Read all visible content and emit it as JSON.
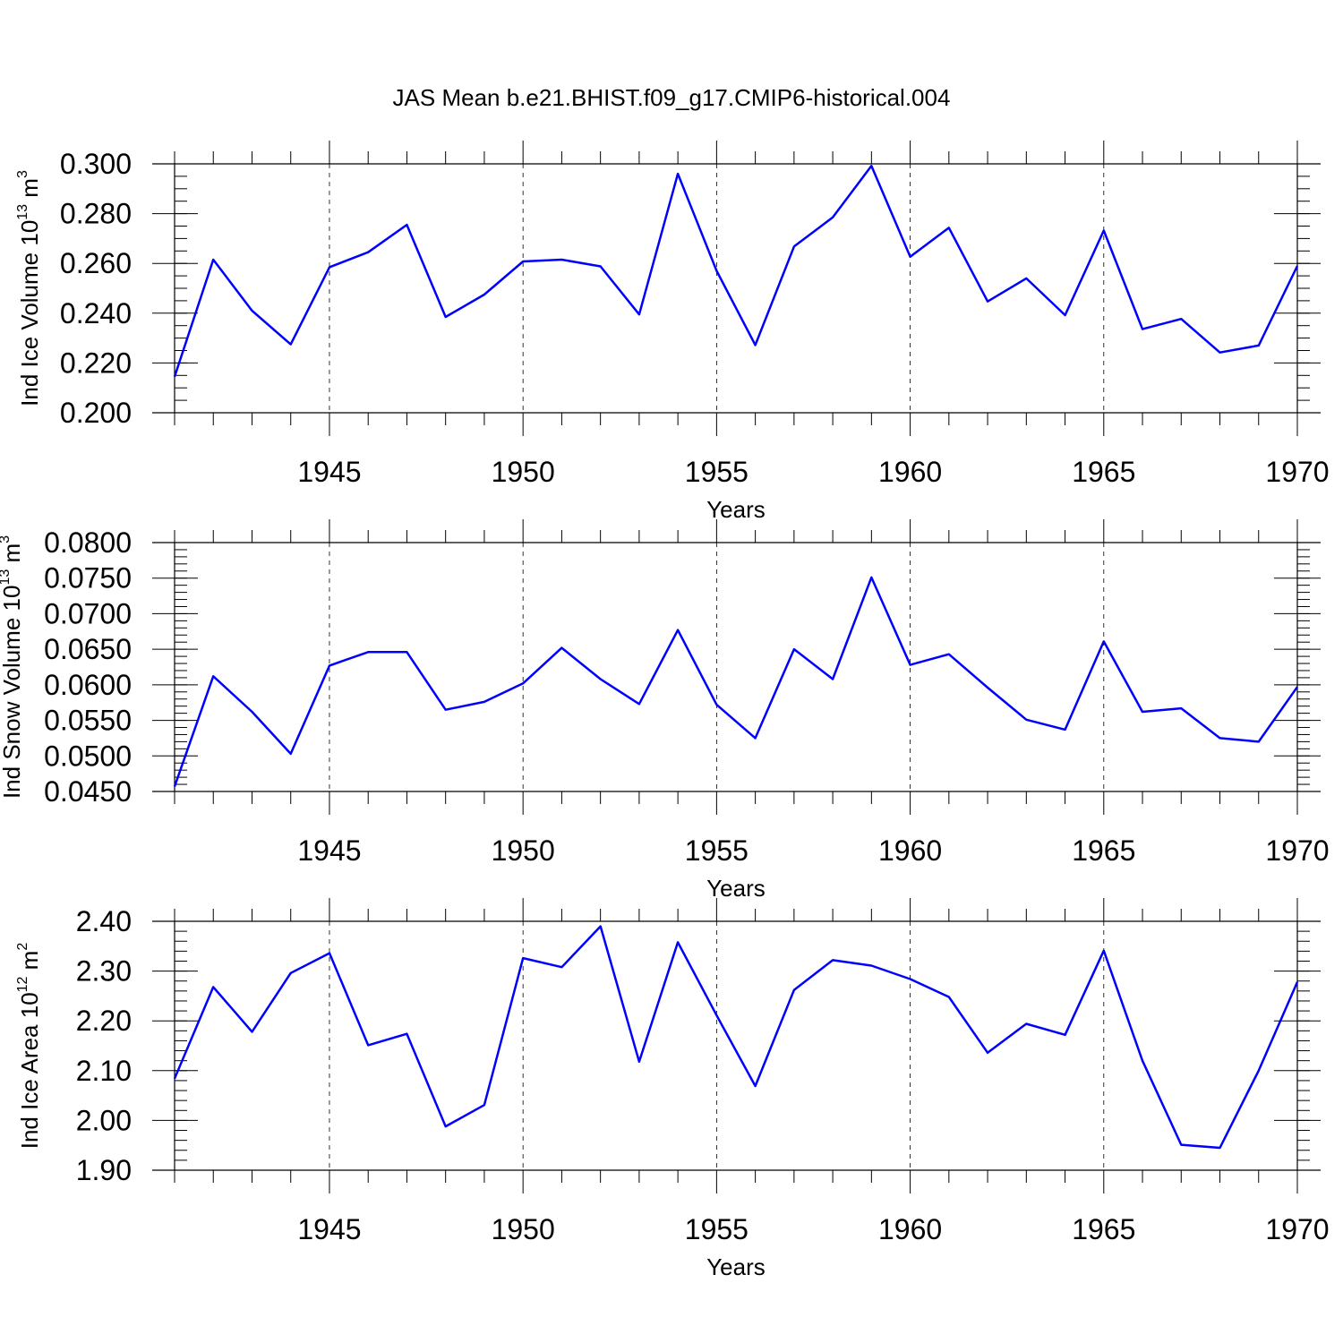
{
  "title": "JAS Mean b.e21.BHIST.f09_g17.CMIP6-historical.004",
  "colors": {
    "line": "#0000ff",
    "axis": "#000000"
  },
  "chart_data": [
    {
      "type": "line",
      "ylabel": {
        "base": "Ind Ice Volume 10",
        "exp": "13",
        "unit": " m",
        "unit_exp": "3"
      },
      "xlabel": "Years",
      "xlim": [
        1941,
        1970
      ],
      "ylim": [
        0.2,
        0.3
      ],
      "x_ticks": [
        1945,
        1950,
        1955,
        1960,
        1965,
        1970
      ],
      "x_tick_labels": [
        "1945",
        "1950",
        "1955",
        "1960",
        "1965",
        "1970"
      ],
      "y_ticks": [
        0.2,
        0.22,
        0.24,
        0.26,
        0.28,
        0.3
      ],
      "y_tick_labels": [
        "0.200",
        "0.220",
        "0.240",
        "0.260",
        "0.280",
        "0.300"
      ],
      "y_minor_step": 0.005,
      "grid": "dashed vertical at major x ticks",
      "series": [
        {
          "name": "Ind Ice Volume",
          "x": [
            1941,
            1942,
            1943,
            1944,
            1945,
            1946,
            1947,
            1948,
            1949,
            1950,
            1951,
            1952,
            1953,
            1954,
            1955,
            1956,
            1957,
            1958,
            1959,
            1960,
            1961,
            1962,
            1963,
            1964,
            1965,
            1966,
            1967,
            1968,
            1969,
            1970
          ],
          "values": [
            0.2145,
            0.2615,
            0.241,
            0.2275,
            0.2585,
            0.2645,
            0.2755,
            0.2385,
            0.2475,
            0.2608,
            0.2615,
            0.2588,
            0.2395,
            0.296,
            0.257,
            0.2272,
            0.2668,
            0.2785,
            0.2992,
            0.2627,
            0.2743,
            0.2447,
            0.254,
            0.2392,
            0.2732,
            0.2336,
            0.2377,
            0.2242,
            0.227,
            0.259
          ]
        }
      ]
    },
    {
      "type": "line",
      "ylabel": {
        "base": "Ind Snow Volume 10",
        "exp": "13",
        "unit": " m",
        "unit_exp": "3"
      },
      "xlabel": "Years",
      "xlim": [
        1941,
        1970
      ],
      "ylim": [
        0.045,
        0.08
      ],
      "x_ticks": [
        1945,
        1950,
        1955,
        1960,
        1965,
        1970
      ],
      "x_tick_labels": [
        "1945",
        "1950",
        "1955",
        "1960",
        "1965",
        "1970"
      ],
      "y_ticks": [
        0.045,
        0.05,
        0.055,
        0.06,
        0.065,
        0.07,
        0.075,
        0.08
      ],
      "y_tick_labels": [
        "0.0450",
        "0.0500",
        "0.0550",
        "0.0600",
        "0.0650",
        "0.0700",
        "0.0750",
        "0.0800"
      ],
      "y_minor_step": 0.001,
      "grid": "dashed vertical at major x ticks",
      "series": [
        {
          "name": "Ind Snow Volume",
          "x": [
            1941,
            1942,
            1943,
            1944,
            1945,
            1946,
            1947,
            1948,
            1949,
            1950,
            1951,
            1952,
            1953,
            1954,
            1955,
            1956,
            1957,
            1958,
            1959,
            1960,
            1961,
            1962,
            1963,
            1964,
            1965,
            1966,
            1967,
            1968,
            1969,
            1970
          ],
          "values": [
            0.0457,
            0.0612,
            0.0562,
            0.0503,
            0.0627,
            0.0646,
            0.0646,
            0.0565,
            0.0576,
            0.0602,
            0.0652,
            0.0608,
            0.0573,
            0.0677,
            0.0572,
            0.0525,
            0.065,
            0.0608,
            0.0751,
            0.0628,
            0.0643,
            0.0596,
            0.0551,
            0.0537,
            0.0661,
            0.0562,
            0.0567,
            0.0525,
            0.052,
            0.0597
          ]
        }
      ]
    },
    {
      "type": "line",
      "ylabel": {
        "base": "Ind Ice Area 10",
        "exp": "12",
        "unit": " m",
        "unit_exp": "2"
      },
      "xlabel": "Years",
      "xlim": [
        1941,
        1970
      ],
      "ylim": [
        1.9,
        2.4
      ],
      "x_ticks": [
        1945,
        1950,
        1955,
        1960,
        1965,
        1970
      ],
      "x_tick_labels": [
        "1945",
        "1950",
        "1955",
        "1960",
        "1965",
        "1970"
      ],
      "y_ticks": [
        1.9,
        2.0,
        2.1,
        2.2,
        2.3,
        2.4
      ],
      "y_tick_labels": [
        "1.90",
        "2.00",
        "2.10",
        "2.20",
        "2.30",
        "2.40"
      ],
      "y_minor_step": 0.02,
      "grid": "dashed vertical at major x ticks",
      "series": [
        {
          "name": "Ind Ice Area",
          "x": [
            1941,
            1942,
            1943,
            1944,
            1945,
            1946,
            1947,
            1948,
            1949,
            1950,
            1951,
            1952,
            1953,
            1954,
            1955,
            1956,
            1957,
            1958,
            1959,
            1960,
            1961,
            1962,
            1963,
            1964,
            1965,
            1966,
            1967,
            1968,
            1969,
            1970
          ],
          "values": [
            2.084,
            2.268,
            2.178,
            2.296,
            2.336,
            2.151,
            2.174,
            1.988,
            2.031,
            2.326,
            2.308,
            2.39,
            2.118,
            2.358,
            2.211,
            2.069,
            2.262,
            2.322,
            2.311,
            2.284,
            2.248,
            2.136,
            2.194,
            2.172,
            2.341,
            2.12,
            1.951,
            1.945,
            2.1,
            2.278
          ]
        }
      ]
    }
  ]
}
